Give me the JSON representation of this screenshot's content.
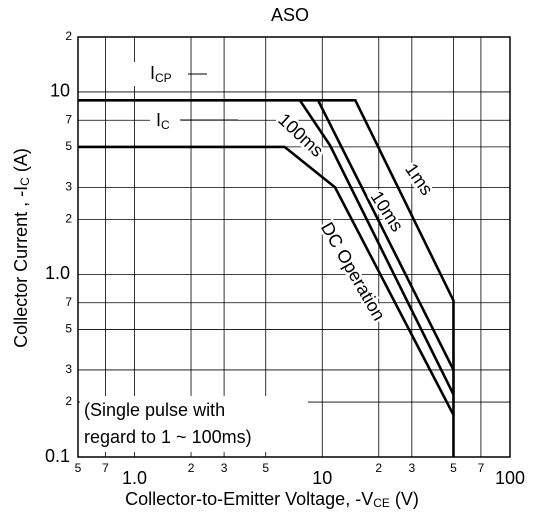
{
  "chart_data": {
    "type": "line",
    "title": "ASO",
    "x_label": {
      "text": "Collector-to-Emitter Voltage, -V",
      "sub": "CE",
      "after": " (V)"
    },
    "y_label": {
      "text": "Collector Current , -I",
      "sub": "C",
      "after": " (A)"
    },
    "log_x": true,
    "log_y": true,
    "grid": true,
    "xlim": [
      0.5,
      100
    ],
    "ylim": [
      0.1,
      20
    ],
    "xticks": [
      {
        "value": 0.5,
        "label": "5"
      },
      {
        "value": 0.7,
        "label": "7"
      },
      {
        "value": 1,
        "label": "1.0"
      },
      2,
      3,
      5,
      10,
      {
        "value": 20,
        "label": "2"
      },
      {
        "value": 30,
        "label": "3"
      },
      {
        "value": 50,
        "label": "5"
      },
      {
        "value": 70,
        "label": "7"
      },
      100
    ],
    "yticks": [
      0.1,
      {
        "value": 0.2,
        "label": "2"
      },
      {
        "value": 0.3,
        "label": "3"
      },
      {
        "value": 0.5,
        "label": "5"
      },
      {
        "value": 0.7,
        "label": "7"
      },
      {
        "value": 1,
        "label": "1.0"
      },
      2,
      3,
      5,
      7,
      10,
      {
        "value": 20,
        "label": "2"
      }
    ],
    "color": "#000000",
    "series": [
      {
        "name": "1ms",
        "x": [
          0.5,
          15,
          50,
          50
        ],
        "values": [
          9,
          9,
          0.72,
          0.1
        ]
      },
      {
        "name": "10ms",
        "x": [
          9.5,
          50
        ],
        "values": [
          9,
          0.3
        ]
      },
      {
        "name": "100ms",
        "x": [
          7.6,
          11,
          50
        ],
        "values": [
          9,
          5.1,
          0.22
        ]
      },
      {
        "name": "DC Operation",
        "x": [
          0.5,
          6.3,
          11.7,
          50
        ],
        "values": [
          5,
          5,
          3,
          0.17
        ]
      }
    ],
    "annotations": [
      {
        "text": "I",
        "sub": "CP"
      },
      {
        "text": "I",
        "sub": "C"
      },
      {
        "text": "(Single pulse with"
      },
      {
        "text": "regard to 1 ~ 100ms)"
      }
    ]
  }
}
